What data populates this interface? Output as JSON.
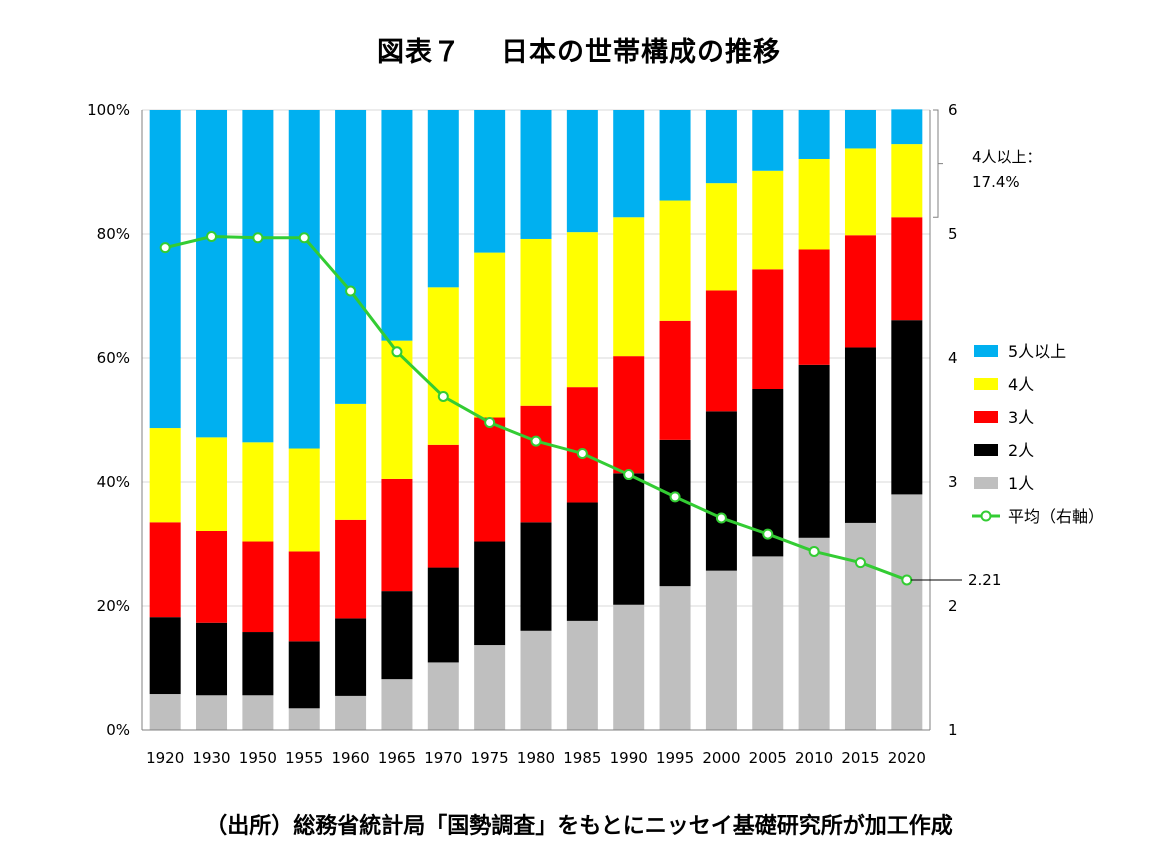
{
  "title": {
    "label": "図表７",
    "text": "日本の世帯構成の推移"
  },
  "source": "（出所）総務省統計局「国勢調査」をもとにニッセイ基礎研究所が加工作成",
  "chart_data": {
    "type": "bar",
    "stacked": true,
    "categories": [
      "1920",
      "1930",
      "1950",
      "1955",
      "1960",
      "1965",
      "1970",
      "1975",
      "1980",
      "1985",
      "1990",
      "1995",
      "2000",
      "2005",
      "2010",
      "2015",
      "2020"
    ],
    "series": [
      {
        "name": "1人",
        "color": "#bfbfbf",
        "values": [
          5.8,
          5.6,
          5.6,
          3.5,
          5.5,
          8.2,
          10.9,
          13.7,
          16.0,
          17.6,
          20.2,
          23.2,
          25.7,
          28.0,
          31.0,
          33.4,
          38.0
        ]
      },
      {
        "name": "2人",
        "color": "#000000",
        "values": [
          12.4,
          11.7,
          10.2,
          10.8,
          12.5,
          14.2,
          15.3,
          16.7,
          17.5,
          19.1,
          21.2,
          23.6,
          25.7,
          27.0,
          27.9,
          28.3,
          28.1
        ]
      },
      {
        "name": "3人",
        "color": "#ff0000",
        "values": [
          15.3,
          14.8,
          14.6,
          14.5,
          15.9,
          18.1,
          19.8,
          20.0,
          18.8,
          18.6,
          18.9,
          19.2,
          19.5,
          19.3,
          18.6,
          18.1,
          16.6
        ]
      },
      {
        "name": "4人",
        "color": "#ffff00",
        "values": [
          15.2,
          15.1,
          16.0,
          16.6,
          18.7,
          22.3,
          25.4,
          26.6,
          26.9,
          25.0,
          22.4,
          19.4,
          17.3,
          15.9,
          14.6,
          14.0,
          11.8
        ]
      },
      {
        "name": "5人以上",
        "color": "#00b0f0",
        "values": [
          51.3,
          52.8,
          53.6,
          54.6,
          47.4,
          37.2,
          28.6,
          23.0,
          20.8,
          19.7,
          17.3,
          14.6,
          11.8,
          9.8,
          7.9,
          6.2,
          5.6
        ]
      }
    ],
    "line": {
      "name": "平均（右軸）",
      "color": "#33cc33",
      "values": [
        4.89,
        4.98,
        4.97,
        4.97,
        4.54,
        4.05,
        3.69,
        3.48,
        3.33,
        3.23,
        3.06,
        2.88,
        2.71,
        2.58,
        2.44,
        2.35,
        2.21
      ]
    },
    "y_left": {
      "min": 0,
      "max": 100,
      "ticks": [
        "0%",
        "20%",
        "40%",
        "60%",
        "80%",
        "100%"
      ]
    },
    "y_right": {
      "min": 1,
      "max": 6,
      "ticks": [
        "1",
        "2",
        "3",
        "4",
        "5",
        "6"
      ]
    },
    "annotations": {
      "last_value": "2.21",
      "bracket_label_1": "4人以上：",
      "bracket_label_2": "17.4%"
    },
    "legend_position": "right",
    "legend_order": [
      "5人以上",
      "4人",
      "3人",
      "2人",
      "1人",
      "平均（右軸）"
    ]
  }
}
